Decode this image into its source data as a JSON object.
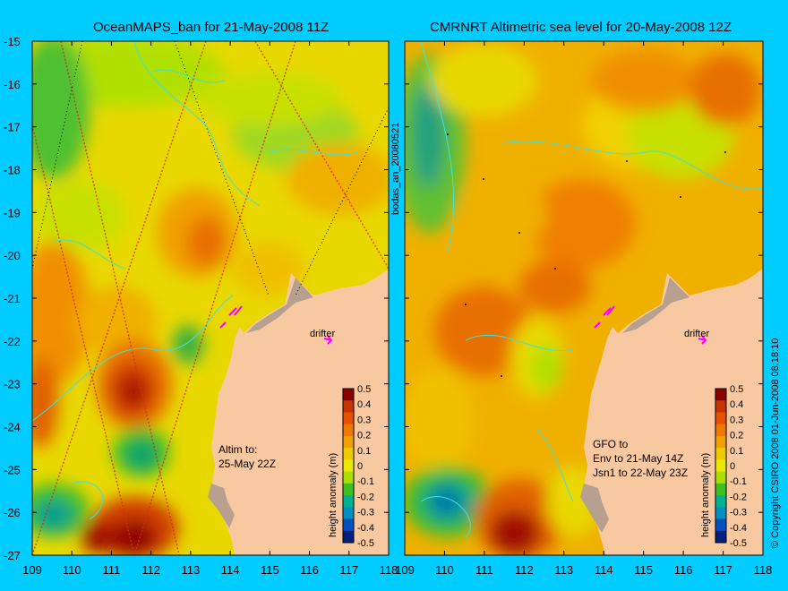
{
  "left_panel": {
    "title": "OceanMAPS_ban for 21-May-2008 11Z",
    "label_drifter": "drifter",
    "note_line1": "Altim to:",
    "note_line2": "25-May 22Z"
  },
  "right_panel": {
    "title": "CMRNRT Altimetric sea level  for 20-May-2008 12Z",
    "label_drifter": "drifter",
    "note_line1": "GFO to",
    "note_line2": "Env to 21-May 14Z",
    "note_line3": "Jsn1 to 22-May 23Z"
  },
  "side_text": {
    "run_id": "bodas_an_20080521",
    "copyright": "© Copyright CSIRO 2008  01-Jun-2008 08:18:10"
  },
  "axes": {
    "y_ticks": [
      "-15",
      "-16",
      "-17",
      "-18",
      "-19",
      "-20",
      "-21",
      "-22",
      "-23",
      "-24",
      "-25",
      "-26",
      "-27"
    ],
    "x_ticks": [
      "109",
      "110",
      "111",
      "112",
      "113",
      "114",
      "115",
      "116",
      "117",
      "118"
    ]
  },
  "colorbar": {
    "label": "height anomaly (m)",
    "ticks": [
      "0.5",
      "0.4",
      "0.3",
      "0.2",
      "0.1",
      "0",
      "-0.1",
      "-0.2",
      "-0.3",
      "-0.4",
      "-0.5"
    ],
    "colors": [
      "#8b0000",
      "#c83200",
      "#e85000",
      "#f07800",
      "#f0a000",
      "#f0c800",
      "#e8e800",
      "#a8e000",
      "#40c020",
      "#00b090",
      "#0090c0",
      "#0050c0",
      "#002080"
    ]
  },
  "colors": {
    "background": "#00ccff",
    "land": "#f8c8a0",
    "coast_shade": "#b8a090",
    "drifter_arrow": "#ff00ff",
    "contour": "#40e0e0"
  }
}
